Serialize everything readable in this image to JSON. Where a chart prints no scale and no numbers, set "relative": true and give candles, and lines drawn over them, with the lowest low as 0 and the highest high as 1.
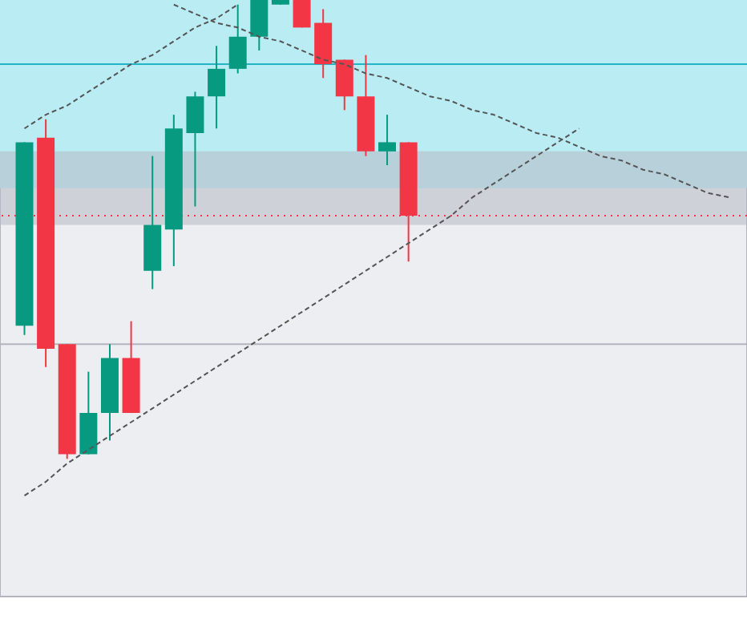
{
  "chart_data": {
    "type": "candlestick",
    "relative": true,
    "categories": [
      null,
      null,
      null,
      null,
      null,
      null,
      null,
      null,
      null,
      null,
      null,
      null,
      null,
      null,
      null,
      null,
      null,
      null,
      null,
      null,
      null,
      null,
      null,
      null,
      null,
      null,
      null,
      null,
      null,
      null,
      null,
      null,
      null,
      null
    ],
    "ohlc": [
      [
        0.29,
        0.69,
        0.27,
        0.69
      ],
      [
        0.7,
        0.74,
        0.2,
        0.24
      ],
      [
        0.25,
        0.25,
        0,
        0.01
      ],
      [
        0.01,
        0.19,
        0.01,
        0.1
      ],
      [
        0.1,
        0.25,
        0.04,
        0.22
      ],
      [
        0.22,
        0.3,
        0.1,
        0.1
      ],
      [
        0.41,
        0.66,
        0.37,
        0.51
      ],
      [
        0.5,
        0.75,
        0.42,
        0.72
      ],
      [
        0.71,
        0.8,
        0.55,
        0.79
      ],
      [
        0.79,
        0.9,
        0.72,
        0.85
      ],
      [
        0.85,
        0.99,
        0.84,
        0.92
      ],
      [
        0.92,
        1,
        0.89,
        1
      ],
      [
        0.99,
        1,
        0.99,
        1
      ],
      [
        1,
        1,
        0.94,
        0.94
      ],
      [
        0.95,
        0.98,
        0.83,
        0.86
      ],
      [
        0.87,
        0.87,
        0.76,
        0.79
      ],
      [
        0.79,
        0.88,
        0.66,
        0.67
      ],
      [
        0.67,
        0.75,
        0.64,
        0.69
      ],
      [
        0.69,
        0.69,
        0.43,
        0.53
      ],
      null,
      null,
      null,
      null,
      null,
      null,
      null,
      null,
      null,
      null,
      null,
      null,
      null,
      null,
      null
    ],
    "colors": [
      "#089981",
      "#f23645",
      "#f23645",
      "#089981",
      "#089981",
      "#f23645",
      "#089981",
      "#089981",
      "#089981",
      "#089981",
      "#089981",
      "#089981",
      "#089981",
      "#f23645",
      "#f23645",
      "#f23645",
      "#f23645",
      "#089981",
      "#f23645",
      null,
      null,
      null,
      null,
      null,
      null,
      null,
      null,
      null,
      null,
      null,
      null,
      null,
      null,
      null
    ],
    "series": [
      {
        "type": "line",
        "color": "#555555",
        "line_style": "dashed",
        "values": [
          0.72,
          0.75,
          0.77,
          0.8,
          0.83,
          0.86,
          0.88,
          0.91,
          0.94,
          0.96,
          0.99,
          null,
          null,
          null,
          null,
          null,
          null,
          null,
          null,
          null,
          null,
          null,
          null,
          null,
          null,
          null,
          null,
          null,
          null,
          null,
          null,
          null,
          null,
          null
        ]
      },
      {
        "type": "line",
        "color": "#555555",
        "line_style": "dashed",
        "values": [
          null,
          null,
          null,
          null,
          null,
          null,
          null,
          0.99,
          0.97,
          0.95,
          0.94,
          0.92,
          0.91,
          0.89,
          0.87,
          0.86,
          0.84,
          0.83,
          0.81,
          0.79,
          0.78,
          0.76,
          0.75,
          0.73,
          0.71,
          0.7,
          0.68,
          0.66,
          0.65,
          0.63,
          0.62,
          0.6,
          0.58,
          0.57
        ]
      },
      {
        "type": "line",
        "color": "#555555",
        "line_style": "dashed",
        "values": [
          -0.08,
          -0.05,
          -0.01,
          0.02,
          0.05,
          0.08,
          0.11,
          0.14,
          0.17,
          0.2,
          0.23,
          0.26,
          0.29,
          0.32,
          0.35,
          0.38,
          0.41,
          0.44,
          0.47,
          0.5,
          0.53,
          0.57,
          0.6,
          0.63,
          0.66,
          0.69,
          0.72,
          null,
          null,
          null,
          null,
          null,
          null,
          null
        ]
      }
    ],
    "bands": [
      {
        "axis": "y",
        "from": 0.59,
        "to": 1,
        "color": "#b9ecf3"
      },
      {
        "axis": "y",
        "from": 0.51,
        "to": 0.67,
        "color": "#b8bac4"
      }
    ],
    "ref_lines": [
      {
        "axis": "y",
        "value": 0.86,
        "color": "#22b5c8",
        "line_style": "solid"
      },
      {
        "axis": "y",
        "value": 0.25,
        "color": "#b2b5be",
        "line_style": "solid"
      },
      {
        "axis": "y",
        "value": 0.53,
        "color": "#f23645",
        "line_style": "dotted"
      }
    ]
  }
}
